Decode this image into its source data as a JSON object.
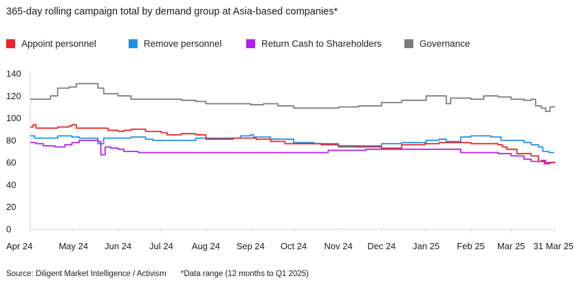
{
  "chart_data": {
    "type": "line",
    "title": "365-day rolling campaign total by demand group at Asia-based companies*",
    "xlabel": "",
    "ylabel": "",
    "ylim": [
      0,
      140
    ],
    "yticks": [
      0,
      20,
      40,
      60,
      80,
      100,
      120,
      140
    ],
    "x_start": "2024-04-01",
    "x_end": "2025-03-31",
    "xticks": [
      {
        "date": "2024-04-01",
        "label": "Apr 24"
      },
      {
        "date": "2024-05-01",
        "label": "May 24"
      },
      {
        "date": "2024-06-01",
        "label": "Jun 24"
      },
      {
        "date": "2024-07-01",
        "label": "Jul 24"
      },
      {
        "date": "2024-08-01",
        "label": "Aug 24"
      },
      {
        "date": "2024-09-01",
        "label": "Sep 24"
      },
      {
        "date": "2024-10-01",
        "label": "Oct 24"
      },
      {
        "date": "2024-11-01",
        "label": "Nov 24"
      },
      {
        "date": "2024-12-01",
        "label": "Dec 24"
      },
      {
        "date": "2025-01-01",
        "label": "Jan 25"
      },
      {
        "date": "2025-02-01",
        "label": "Feb 25"
      },
      {
        "date": "2025-03-01",
        "label": "Mar 25"
      },
      {
        "date": "2025-03-31",
        "label": "31 Mar 25"
      }
    ],
    "grid": false,
    "legend_position": "top-left",
    "series": [
      {
        "name": "Appoint personnel",
        "color": "#e8252b",
        "points": [
          [
            "2024-04-01",
            92
          ],
          [
            "2024-04-03",
            94
          ],
          [
            "2024-04-05",
            91
          ],
          [
            "2024-04-15",
            91
          ],
          [
            "2024-04-20",
            92
          ],
          [
            "2024-04-28",
            93
          ],
          [
            "2024-04-30",
            94
          ],
          [
            "2024-05-03",
            91
          ],
          [
            "2024-05-20",
            91
          ],
          [
            "2024-05-25",
            89
          ],
          [
            "2024-06-01",
            88
          ],
          [
            "2024-06-05",
            89
          ],
          [
            "2024-06-10",
            90
          ],
          [
            "2024-06-20",
            88
          ],
          [
            "2024-07-01",
            87
          ],
          [
            "2024-07-05",
            85
          ],
          [
            "2024-07-15",
            86
          ],
          [
            "2024-07-25",
            85
          ],
          [
            "2024-08-01",
            81
          ],
          [
            "2024-08-20",
            82
          ],
          [
            "2024-08-31",
            82
          ],
          [
            "2024-09-05",
            81
          ],
          [
            "2024-09-15",
            79
          ],
          [
            "2024-09-25",
            77
          ],
          [
            "2024-10-01",
            77
          ],
          [
            "2024-10-20",
            76
          ],
          [
            "2024-11-01",
            75
          ],
          [
            "2024-11-15",
            74
          ],
          [
            "2024-12-01",
            73
          ],
          [
            "2024-12-15",
            76
          ],
          [
            "2024-12-31",
            77
          ],
          [
            "2025-01-10",
            78
          ],
          [
            "2025-01-20",
            78
          ],
          [
            "2025-02-01",
            77
          ],
          [
            "2025-02-10",
            77
          ],
          [
            "2025-02-20",
            76
          ],
          [
            "2025-02-23",
            74
          ],
          [
            "2025-02-26",
            72
          ],
          [
            "2025-03-05",
            68
          ],
          [
            "2025-03-15",
            66
          ],
          [
            "2025-03-20",
            61
          ],
          [
            "2025-03-24",
            59
          ],
          [
            "2025-03-28",
            60
          ],
          [
            "2025-03-31",
            61
          ]
        ]
      },
      {
        "name": "Remove personnel",
        "color": "#1f8fe8",
        "points": [
          [
            "2024-04-01",
            84
          ],
          [
            "2024-04-04",
            82
          ],
          [
            "2024-04-15",
            82
          ],
          [
            "2024-04-20",
            84
          ],
          [
            "2024-04-30",
            83
          ],
          [
            "2024-05-05",
            82
          ],
          [
            "2024-05-12",
            82
          ],
          [
            "2024-05-18",
            77
          ],
          [
            "2024-05-22",
            82
          ],
          [
            "2024-06-01",
            82
          ],
          [
            "2024-06-10",
            83
          ],
          [
            "2024-06-20",
            81
          ],
          [
            "2024-06-25",
            80
          ],
          [
            "2024-07-10",
            80
          ],
          [
            "2024-07-25",
            82
          ],
          [
            "2024-08-10",
            82
          ],
          [
            "2024-08-25",
            84
          ],
          [
            "2024-09-01",
            85
          ],
          [
            "2024-09-03",
            83
          ],
          [
            "2024-09-15",
            81
          ],
          [
            "2024-10-01",
            78
          ],
          [
            "2024-10-15",
            77
          ],
          [
            "2024-11-01",
            74
          ],
          [
            "2024-11-15",
            75
          ],
          [
            "2024-12-01",
            77
          ],
          [
            "2024-12-15",
            78
          ],
          [
            "2025-01-01",
            80
          ],
          [
            "2025-01-10",
            81
          ],
          [
            "2025-01-15",
            79
          ],
          [
            "2025-01-25",
            83
          ],
          [
            "2025-02-01",
            84
          ],
          [
            "2025-02-10",
            84
          ],
          [
            "2025-02-15",
            83
          ],
          [
            "2025-02-22",
            80
          ],
          [
            "2025-03-01",
            80
          ],
          [
            "2025-03-10",
            78
          ],
          [
            "2025-03-15",
            76
          ],
          [
            "2025-03-20",
            74
          ],
          [
            "2025-03-23",
            70
          ],
          [
            "2025-03-27",
            69
          ],
          [
            "2025-03-31",
            69
          ]
        ]
      },
      {
        "name": "Return Cash to Shareholders",
        "color": "#b221ea",
        "points": [
          [
            "2024-04-01",
            78
          ],
          [
            "2024-04-05",
            77
          ],
          [
            "2024-04-10",
            75
          ],
          [
            "2024-04-18",
            74
          ],
          [
            "2024-04-25",
            76
          ],
          [
            "2024-04-30",
            78
          ],
          [
            "2024-05-05",
            80
          ],
          [
            "2024-05-18",
            79
          ],
          [
            "2024-05-20",
            67
          ],
          [
            "2024-05-23",
            74
          ],
          [
            "2024-05-27",
            73
          ],
          [
            "2024-06-01",
            72
          ],
          [
            "2024-06-05",
            70
          ],
          [
            "2024-06-15",
            69
          ],
          [
            "2024-07-15",
            69
          ],
          [
            "2024-08-15",
            69
          ],
          [
            "2024-09-01",
            69
          ],
          [
            "2024-09-20",
            69
          ],
          [
            "2024-10-10",
            69
          ],
          [
            "2024-10-15",
            69
          ],
          [
            "2024-10-25",
            71
          ],
          [
            "2024-11-10",
            71
          ],
          [
            "2024-11-20",
            72
          ],
          [
            "2024-12-15",
            72
          ],
          [
            "2024-12-31",
            72
          ],
          [
            "2025-01-15",
            72
          ],
          [
            "2025-01-25",
            69
          ],
          [
            "2025-02-10",
            69
          ],
          [
            "2025-02-20",
            68
          ],
          [
            "2025-03-01",
            66
          ],
          [
            "2025-03-10",
            63
          ],
          [
            "2025-03-15",
            61
          ],
          [
            "2025-03-22",
            62
          ],
          [
            "2025-03-25",
            60
          ],
          [
            "2025-03-31",
            61
          ]
        ]
      },
      {
        "name": "Governance",
        "color": "#7a7a7a",
        "points": [
          [
            "2024-04-01",
            117
          ],
          [
            "2024-04-10",
            117
          ],
          [
            "2024-04-15",
            120
          ],
          [
            "2024-04-20",
            127
          ],
          [
            "2024-04-28",
            128
          ],
          [
            "2024-05-03",
            131
          ],
          [
            "2024-05-12",
            131
          ],
          [
            "2024-05-18",
            127
          ],
          [
            "2024-05-22",
            122
          ],
          [
            "2024-06-01",
            120
          ],
          [
            "2024-06-10",
            117
          ],
          [
            "2024-06-20",
            117
          ],
          [
            "2024-07-15",
            116
          ],
          [
            "2024-07-25",
            115
          ],
          [
            "2024-08-01",
            113
          ],
          [
            "2024-08-20",
            113
          ],
          [
            "2024-09-01",
            112
          ],
          [
            "2024-09-10",
            113
          ],
          [
            "2024-09-20",
            111
          ],
          [
            "2024-10-01",
            109
          ],
          [
            "2024-10-15",
            109
          ],
          [
            "2024-11-01",
            110
          ],
          [
            "2024-11-15",
            111
          ],
          [
            "2024-12-01",
            114
          ],
          [
            "2024-12-15",
            116
          ],
          [
            "2025-01-01",
            120
          ],
          [
            "2025-01-10",
            120
          ],
          [
            "2025-01-15",
            113
          ],
          [
            "2025-01-18",
            118
          ],
          [
            "2025-02-01",
            117
          ],
          [
            "2025-02-10",
            120
          ],
          [
            "2025-02-20",
            119
          ],
          [
            "2025-03-01",
            117
          ],
          [
            "2025-03-10",
            116
          ],
          [
            "2025-03-15",
            117
          ],
          [
            "2025-03-18",
            111
          ],
          [
            "2025-03-22",
            109
          ],
          [
            "2025-03-25",
            106
          ],
          [
            "2025-03-28",
            110
          ],
          [
            "2025-03-31",
            111
          ]
        ]
      }
    ],
    "source": "Source: Diligent Market Intelligence / Activism",
    "note": "*Data range (12 months to Q1 2025)"
  }
}
